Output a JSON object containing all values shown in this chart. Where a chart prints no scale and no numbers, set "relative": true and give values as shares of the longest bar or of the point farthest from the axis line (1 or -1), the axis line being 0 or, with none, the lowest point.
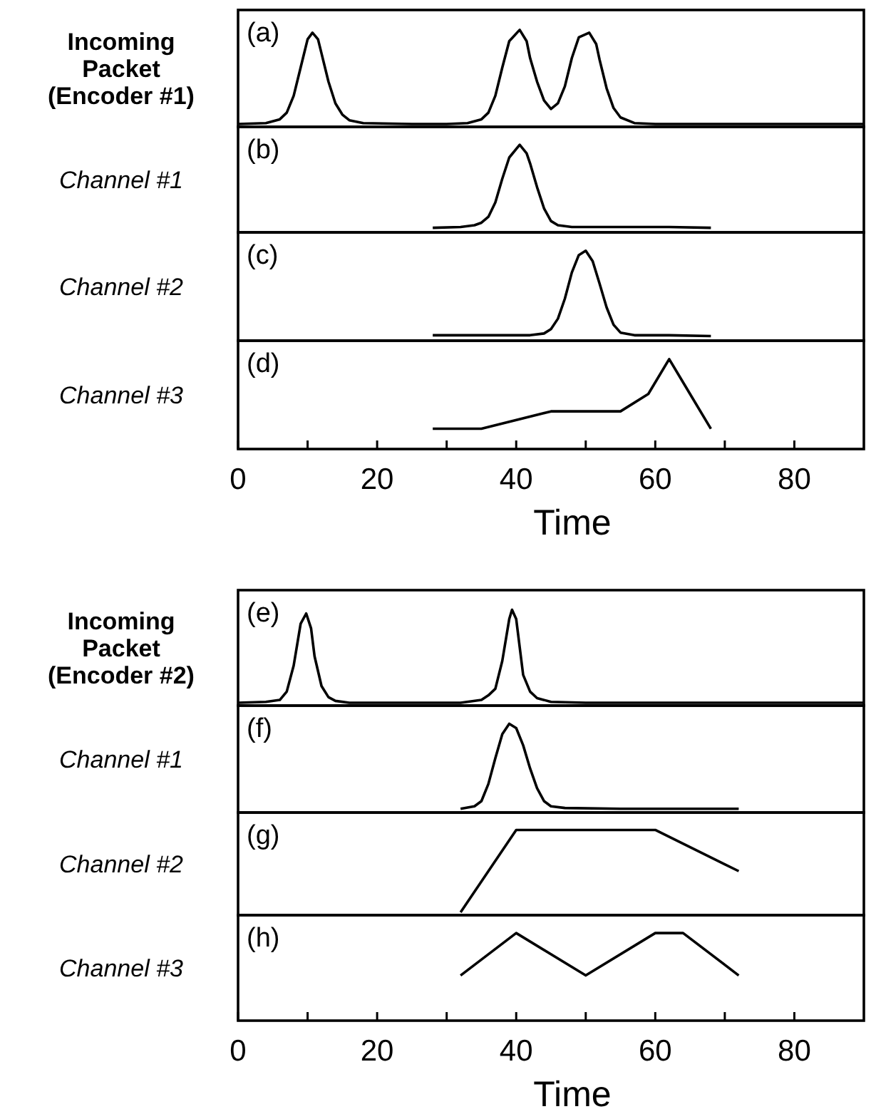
{
  "chart_data": [
    {
      "type": "line",
      "relative": true,
      "ylabel": "Incoming Packet (Encoder #1)",
      "xlim": [
        0,
        90
      ],
      "tick_labels": false,
      "annotations": [
        "(a)"
      ],
      "series": [
        {
          "color": "#000000",
          "x": [
            0,
            4,
            6,
            7,
            8,
            9,
            10,
            10.7,
            11.5,
            12,
            13,
            14,
            15,
            16,
            18,
            25,
            30,
            33,
            35,
            36,
            37,
            38,
            39,
            40.5,
            41.5,
            42,
            43,
            44,
            45,
            46,
            47,
            48,
            49,
            50.5,
            51.5,
            52,
            53,
            54,
            55,
            57,
            60,
            70,
            80,
            90
          ],
          "values": [
            0,
            0.01,
            0.05,
            0.12,
            0.3,
            0.6,
            0.9,
            0.97,
            0.9,
            0.75,
            0.45,
            0.22,
            0.1,
            0.04,
            0.01,
            0,
            0,
            0.01,
            0.05,
            0.12,
            0.3,
            0.6,
            0.88,
            1,
            0.88,
            0.7,
            0.45,
            0.25,
            0.16,
            0.22,
            0.4,
            0.7,
            0.92,
            0.97,
            0.85,
            0.68,
            0.38,
            0.17,
            0.07,
            0.01,
            0,
            0,
            0,
            0
          ]
        }
      ]
    },
    {
      "type": "line",
      "relative": true,
      "ylabel": "Channel #1",
      "xlim": [
        0,
        90
      ],
      "tick_labels": false,
      "annotations": [
        "(b)"
      ],
      "series": [
        {
          "color": "#000000",
          "x": [
            28,
            32,
            34,
            35,
            36,
            37,
            38,
            39,
            40.5,
            41.5,
            42,
            43,
            44,
            45,
            46,
            48,
            55,
            62,
            68
          ],
          "values": [
            0.02,
            0.03,
            0.05,
            0.08,
            0.15,
            0.32,
            0.6,
            0.85,
            1,
            0.9,
            0.78,
            0.5,
            0.25,
            0.1,
            0.05,
            0.03,
            0.03,
            0.03,
            0.02
          ]
        }
      ]
    },
    {
      "type": "line",
      "relative": true,
      "ylabel": "Channel #2",
      "xlim": [
        0,
        90
      ],
      "tick_labels": false,
      "annotations": [
        "(c)"
      ],
      "series": [
        {
          "color": "#000000",
          "x": [
            28,
            35,
            42,
            44,
            45,
            46,
            47,
            48,
            49,
            50,
            51,
            52,
            53,
            54,
            55,
            57,
            62,
            68
          ],
          "values": [
            0.03,
            0.03,
            0.03,
            0.05,
            0.1,
            0.22,
            0.45,
            0.75,
            0.95,
            1,
            0.88,
            0.62,
            0.35,
            0.15,
            0.06,
            0.03,
            0.03,
            0.02
          ]
        }
      ]
    },
    {
      "type": "line",
      "relative": true,
      "ylabel": "Channel #3",
      "xlabel": "Time",
      "xlim": [
        0,
        90
      ],
      "xticks": [
        0,
        {
          "value": 10,
          "label": null
        },
        20,
        {
          "value": 30,
          "label": null
        },
        40,
        {
          "value": 50,
          "label": null
        },
        60,
        {
          "value": 70,
          "label": null
        },
        80
      ],
      "tick_labels": "x",
      "annotations": [
        "(d)"
      ],
      "series": [
        {
          "color": "#000000",
          "x": [
            28,
            35,
            45,
            55,
            59,
            62,
            65,
            68
          ],
          "values": [
            0.2,
            0.2,
            0.4,
            0.4,
            0.6,
            1,
            0.6,
            0.2
          ]
        }
      ]
    },
    {
      "type": "line",
      "relative": true,
      "ylabel": "Incoming Packet (Encoder #2)",
      "xlim": [
        0,
        90
      ],
      "tick_labels": false,
      "annotations": [
        "(e)"
      ],
      "series": [
        {
          "color": "#000000",
          "x": [
            0,
            4,
            6,
            7,
            8,
            9,
            9.8,
            10.5,
            11,
            12,
            13,
            14,
            16,
            25,
            32,
            35,
            36,
            37,
            38,
            39,
            39.4,
            40,
            40.5,
            41,
            42,
            43,
            45,
            50,
            60,
            70,
            80,
            90
          ],
          "values": [
            0,
            0.01,
            0.03,
            0.12,
            0.4,
            0.85,
            0.96,
            0.8,
            0.5,
            0.18,
            0.06,
            0.02,
            0,
            0,
            0,
            0.03,
            0.08,
            0.15,
            0.45,
            0.9,
            1,
            0.9,
            0.6,
            0.3,
            0.12,
            0.05,
            0.01,
            0,
            0,
            0,
            0,
            0
          ]
        }
      ]
    },
    {
      "type": "line",
      "relative": true,
      "ylabel": "Channel #1",
      "xlim": [
        0,
        90
      ],
      "tick_labels": false,
      "annotations": [
        "(f)"
      ],
      "series": [
        {
          "color": "#000000",
          "x": [
            32,
            34,
            35,
            36,
            37,
            38,
            39,
            40,
            41,
            42,
            43,
            44,
            45,
            47,
            55,
            65,
            72
          ],
          "values": [
            0.01,
            0.04,
            0.1,
            0.3,
            0.6,
            0.88,
            1,
            0.95,
            0.75,
            0.48,
            0.25,
            0.1,
            0.04,
            0.02,
            0.01,
            0.01,
            0.01
          ]
        }
      ]
    },
    {
      "type": "line",
      "relative": true,
      "ylabel": "Channel #2",
      "xlim": [
        0,
        90
      ],
      "tick_labels": false,
      "annotations": [
        "(g)"
      ],
      "series": [
        {
          "color": "#000000",
          "x": [
            32,
            40,
            50,
            60,
            72
          ],
          "values": [
            0,
            1,
            1,
            1,
            0.5
          ]
        }
      ]
    },
    {
      "type": "line",
      "relative": true,
      "ylabel": "Channel #3",
      "xlabel": "Time",
      "xlim": [
        0,
        90
      ],
      "xticks": [
        0,
        {
          "value": 10,
          "label": null
        },
        20,
        {
          "value": 30,
          "label": null
        },
        40,
        {
          "value": 50,
          "label": null
        },
        60,
        {
          "value": 70,
          "label": null
        },
        80
      ],
      "tick_labels": "x",
      "annotations": [
        "(h)"
      ],
      "series": [
        {
          "color": "#000000",
          "x": [
            32,
            40,
            50,
            60,
            64,
            72
          ],
          "values": [
            0.5,
            1,
            0.5,
            1,
            1,
            0.5
          ]
        }
      ]
    }
  ]
}
